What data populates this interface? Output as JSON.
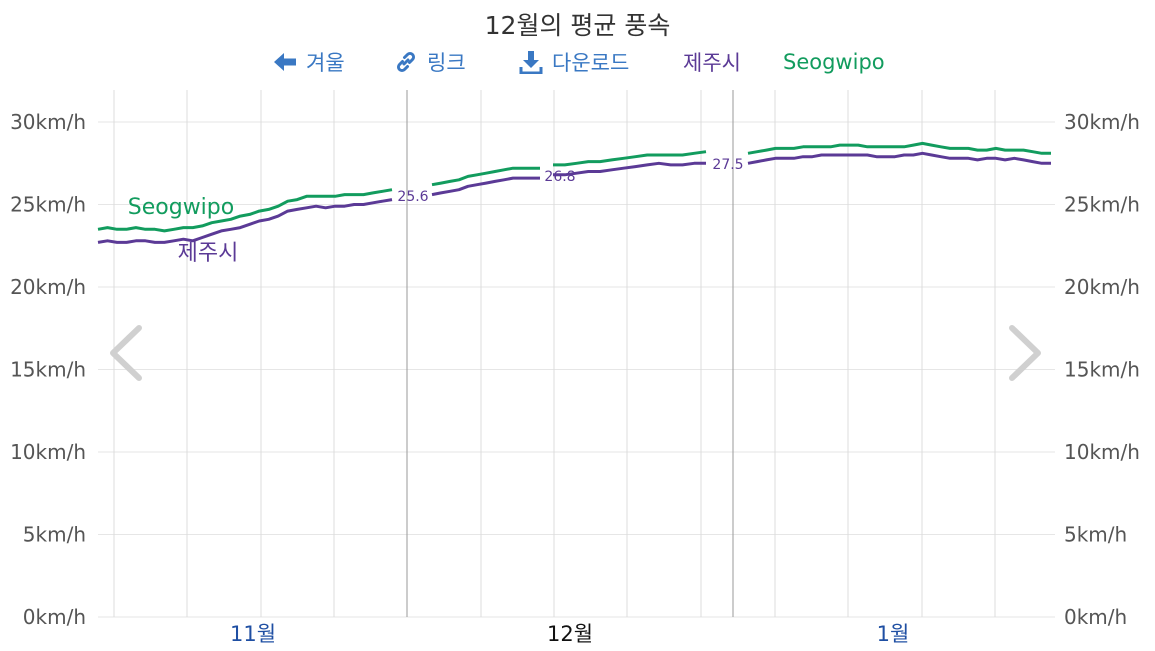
{
  "title": "12월의 평균 풍속",
  "toolbar": {
    "back_label": "겨울",
    "link_label": "링크",
    "download_label": "다운로드"
  },
  "icons": {
    "back": "arrow-left-icon",
    "link": "link-icon",
    "download": "download-icon",
    "prev": "chevron-left-icon",
    "next": "chevron-right-icon"
  },
  "colors": {
    "jeju": "#5b3a96",
    "seogwipo": "#129c5e",
    "accent": "#3a78c3"
  },
  "chart_data": {
    "type": "line",
    "title": "12월의 평균 풍속",
    "y_unit": "km/h",
    "ylim": [
      0,
      32
    ],
    "yticks": [
      "0km/h",
      "5km/h",
      "10km/h",
      "15km/h",
      "20km/h",
      "25km/h",
      "30km/h"
    ],
    "month_labels": [
      "11월",
      "12월",
      "1월"
    ],
    "legend_position": "top",
    "grid": true,
    "series": [
      {
        "name": "제주시",
        "segments": [
          [
            22.7,
            22.8,
            22.7,
            22.7,
            22.8,
            22.8,
            22.7,
            22.7,
            22.8,
            22.9,
            22.8,
            23.0,
            23.2,
            23.4,
            23.5,
            23.6,
            23.8,
            24.0,
            24.1,
            24.3,
            24.6,
            24.7,
            24.8,
            24.9,
            24.8,
            24.9,
            24.9,
            25.0,
            25.0,
            25.1,
            25.2,
            25.3
          ],
          [
            25.6,
            25.7,
            25.8,
            25.9,
            26.1,
            26.2,
            26.3,
            26.4,
            26.5,
            26.6,
            26.6,
            26.6,
            26.6
          ],
          [
            26.8,
            26.8,
            26.9,
            27.0,
            27.0,
            27.1,
            27.2,
            27.3,
            27.4,
            27.5,
            27.4,
            27.4,
            27.5,
            27.5
          ],
          [
            27.5,
            27.6,
            27.7,
            27.8,
            27.8,
            27.8,
            27.9,
            27.9,
            28.0,
            28.0,
            28.0,
            28.0,
            28.0,
            28.0,
            27.9,
            27.9,
            27.9,
            28.0,
            28.0,
            28.1,
            28.0,
            27.9,
            27.8,
            27.8,
            27.8,
            27.7,
            27.8,
            27.8,
            27.7,
            27.8,
            27.7,
            27.6,
            27.5,
            27.5
          ]
        ],
        "labels": [
          {
            "text": "제주시",
            "segment": 0
          },
          {
            "text": "25.6",
            "segment": 1
          },
          {
            "text": "26.8",
            "segment": 2
          },
          {
            "text": "27.5",
            "segment": 3
          }
        ]
      },
      {
        "name": "Seogwipo",
        "segments": [
          [
            23.5,
            23.6,
            23.5,
            23.5,
            23.6,
            23.5,
            23.5,
            23.4,
            23.5,
            23.6,
            23.6,
            23.7,
            23.9,
            24.0,
            24.1,
            24.3,
            24.4,
            24.6,
            24.7,
            24.9,
            25.2,
            25.3,
            25.5,
            25.5,
            25.5,
            25.5,
            25.6,
            25.6,
            25.6,
            25.7,
            25.8,
            25.9
          ],
          [
            26.2,
            26.3,
            26.4,
            26.5,
            26.7,
            26.8,
            26.9,
            27.0,
            27.1,
            27.2,
            27.2,
            27.2,
            27.2
          ],
          [
            27.4,
            27.4,
            27.5,
            27.6,
            27.6,
            27.7,
            27.8,
            27.9,
            28.0,
            28.0,
            28.0,
            28.0,
            28.1,
            28.2
          ],
          [
            28.1,
            28.2,
            28.3,
            28.4,
            28.4,
            28.4,
            28.5,
            28.5,
            28.5,
            28.5,
            28.6,
            28.6,
            28.6,
            28.5,
            28.5,
            28.5,
            28.5,
            28.5,
            28.6,
            28.7,
            28.6,
            28.5,
            28.4,
            28.4,
            28.4,
            28.3,
            28.3,
            28.4,
            28.3,
            28.3,
            28.3,
            28.2,
            28.1,
            28.1
          ]
        ],
        "labels": [
          {
            "text": "Seogwipo",
            "segment": 0
          }
        ]
      }
    ]
  }
}
